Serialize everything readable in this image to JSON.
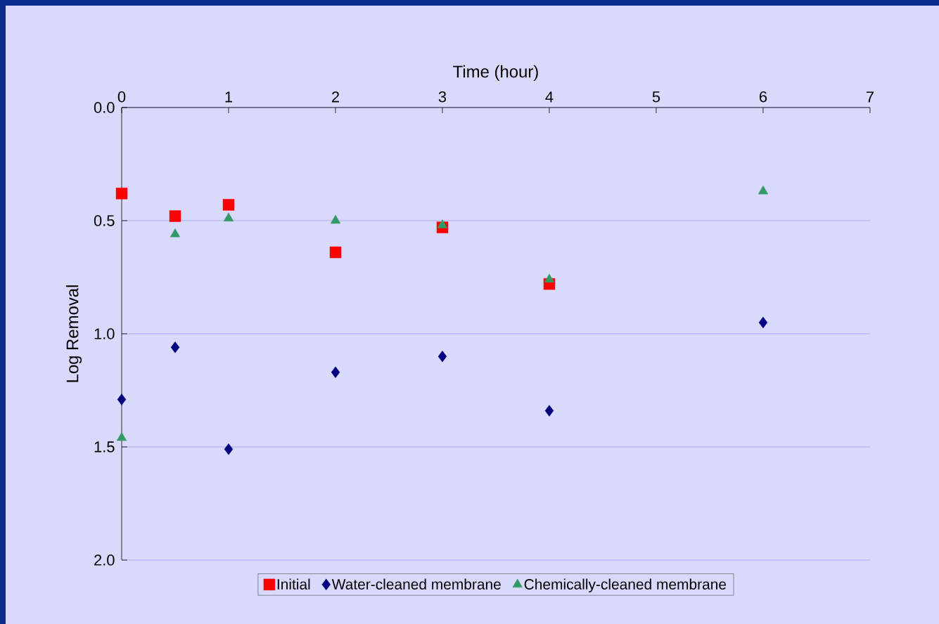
{
  "chart_data": {
    "type": "scatter",
    "xlabel": "Time (hour)",
    "ylabel": "Log Removal",
    "xlim": [
      0,
      7
    ],
    "xticks": [
      0,
      1,
      2,
      3,
      4,
      5,
      6,
      7
    ],
    "ylim": [
      2.0,
      0.0
    ],
    "yticks": [
      {
        "value": 0,
        "label": "0.0"
      },
      {
        "value": 0.5,
        "label": "0.5"
      },
      {
        "value": 1,
        "label": "1.0"
      },
      {
        "value": 1.5,
        "label": "1.5"
      },
      {
        "value": 2,
        "label": "2.0"
      }
    ],
    "grid": "y",
    "legend": "bottom",
    "series": [
      {
        "name": "Initial",
        "color": "#ff0000",
        "marker": "square",
        "x": [
          0,
          0.5,
          1,
          2,
          3,
          4
        ],
        "values": [
          0.38,
          0.48,
          0.43,
          0.64,
          0.53,
          0.78
        ]
      },
      {
        "name": "Water-cleaned membrane",
        "color": "#000080",
        "marker": "diamond",
        "x": [
          0,
          0.5,
          1,
          2,
          3,
          4,
          6
        ],
        "values": [
          1.29,
          1.06,
          1.51,
          1.17,
          1.1,
          1.34,
          0.95
        ]
      },
      {
        "name": "Chemically-cleaned membrane",
        "color": "#339966",
        "marker": "triangle",
        "x": [
          0,
          0.5,
          1,
          2,
          3,
          4,
          6
        ],
        "values": [
          1.46,
          0.56,
          0.49,
          0.5,
          0.52,
          0.76,
          0.37
        ]
      }
    ]
  }
}
